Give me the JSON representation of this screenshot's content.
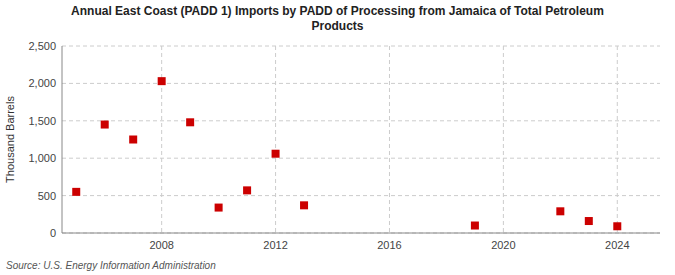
{
  "chart_data": {
    "type": "scatter",
    "title": "Annual East Coast (PADD 1) Imports by PADD of Processing from Jamaica of Total Petroleum\nProducts",
    "ylabel": "Thousand Barrels",
    "source": "Source: U.S. Energy Information Administration",
    "x": [
      2005,
      2006,
      2007,
      2008,
      2009,
      2010,
      2011,
      2012,
      2013,
      2019,
      2022,
      2023,
      2024
    ],
    "values": [
      550,
      1450,
      1250,
      2030,
      1480,
      340,
      570,
      1060,
      370,
      100,
      290,
      160,
      90
    ],
    "color": "#cc0000",
    "marker": "square",
    "xlim": [
      2004.5,
      2025.5
    ],
    "ylim": [
      0,
      2500
    ],
    "xticks": [
      2008,
      2012,
      2016,
      2020,
      2024
    ],
    "yticks": [
      0,
      500,
      {
        "value": 1000,
        "label": "1,000"
      },
      {
        "value": 1500,
        "label": "1,500"
      },
      {
        "value": 2000,
        "label": "2,000"
      },
      {
        "value": 2500,
        "label": "2,500"
      }
    ],
    "grid": true
  }
}
